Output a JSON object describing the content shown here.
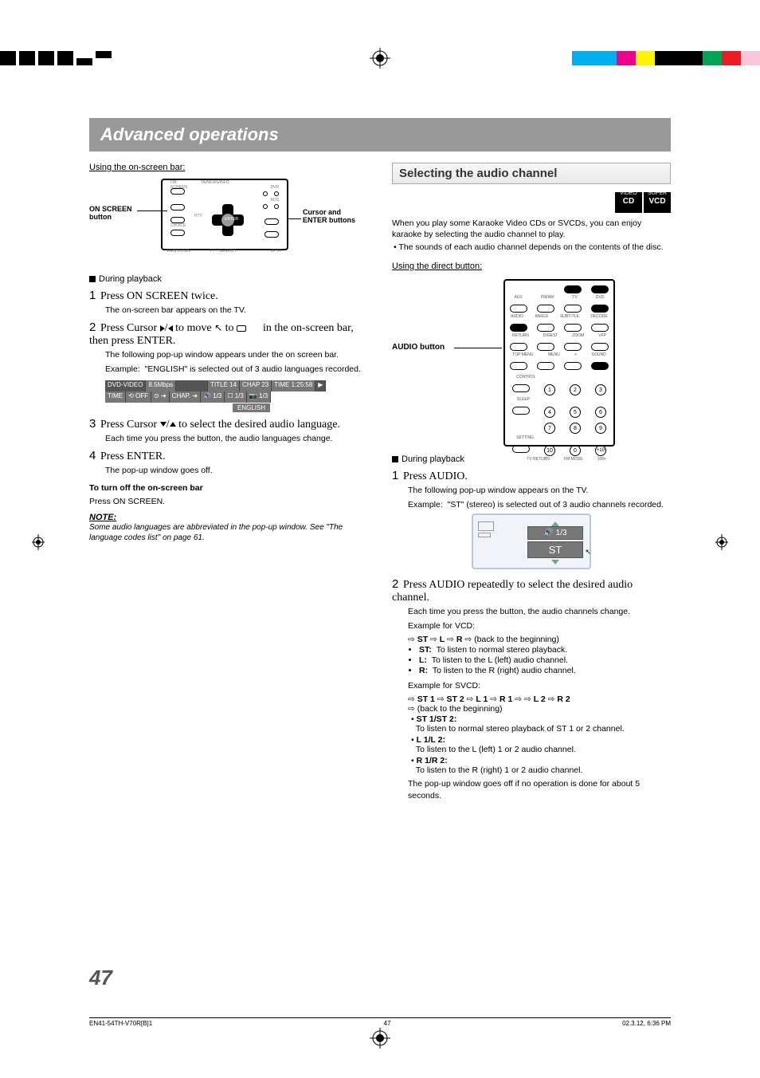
{
  "print_marks": {
    "top_right_colors": [
      "#00aeef",
      "#ec008c",
      "#fff200",
      "#000000",
      "#00a651",
      "#ed1c24",
      "#f7c6d9"
    ]
  },
  "title": "Advanced operations",
  "page_number": "47",
  "footer": {
    "left": "EN41-54TH-V70R[B]1",
    "mid": "47",
    "right": "02.3.12, 6:36 PM"
  },
  "left": {
    "using_bar": "Using the on-screen bar:",
    "on_screen_label": "ON SCREEN button",
    "cursor_label": "Cursor and ENTER buttons",
    "remote_tiny_labels": [
      "CLEAR/REC",
      "TA/NEWS/INFO",
      "ON SCREEN",
      "CHOICE",
      "DVR",
      "RDS",
      "REW",
      "FF",
      "PTY",
      "ENTER",
      "DOWN",
      "UP",
      "PTY SEARCH",
      "+",
      "-"
    ],
    "during": "During playback",
    "s1": "Press ON SCREEN twice.",
    "s1_sub": "The on-screen bar appears on the TV.",
    "s2a": "Press Cursor ",
    "s2b": " to move ",
    "s2c": " to ",
    "s2d": " in the on-screen bar, then press ENTER.",
    "s2_sub1": "The following pop-up window appears under the on screen bar.",
    "s2_sub2a": "Example:",
    "s2_sub2b": "\"ENGLISH\" is selected out of 3 audio languages recorded.",
    "osd": {
      "r1": [
        "DVD-VIDEO",
        "8.5Mbps",
        "",
        "TITLE 14",
        "CHAP 23",
        "TIME 1:25:58",
        "▶"
      ],
      "r2": [
        "TIME",
        "⟲ OFF",
        "⊙ ➜",
        "CHAP. ➜",
        "🔊 1/3",
        "☐ 1/3",
        "📷 1/3"
      ],
      "english": "ENGLISH"
    },
    "s3": "Press Cursor ▼/▲ to select the desired audio language.",
    "s3_sub": "Each time you press the button, the audio languages change.",
    "s4": "Press ENTER.",
    "s4_sub": "The pop-up window goes off.",
    "turnoff_h": "To turn off  the on-screen bar",
    "turnoff_b": "Press ON SCREEN.",
    "note_h": "NOTE:",
    "note_b": "Some audio languages are abbreviated in the pop-up window. See \"The language codes list\" on page 61."
  },
  "right": {
    "section": "Selecting the audio channel",
    "badges": [
      {
        "top": "VIDEO",
        "bot": "CD"
      },
      {
        "top": "SUPER",
        "bot": "VCD"
      }
    ],
    "intro1": "When you play some Karaoke Video CDs or SVCDs, you can enjoy karaoke by selecting the audio channel to play.",
    "intro2": "The sounds of each audio channel depends on the contents of the disc.",
    "using_direct": "Using the direct button:",
    "audio_btn_label": "AUDIO button",
    "remote_labels": [
      "TV",
      "DVD",
      "AUX",
      "FM/AM",
      "AUDIO",
      "ANGLE",
      "SUBTITLE",
      "DECODE",
      "RETURN",
      "DIGEST",
      "ZOOM",
      "VFP",
      "TOP MENU",
      "MENU",
      "CONTROL",
      "SLEEP",
      "SETTING",
      "TV RETURN",
      "FM MODE",
      "100+",
      "SOUND"
    ],
    "numpad": [
      "1",
      "2",
      "3",
      "4",
      "5",
      "6",
      "7",
      "8",
      "9",
      "10",
      "0",
      "+10"
    ],
    "during": "During playback",
    "s1": "Press AUDIO.",
    "s1_sub1": "The following pop-up window appears on the TV.",
    "s1_sub2a": "Example:",
    "s1_sub2b": "\"ST\" (stereo) is selected out of 3 audio channels recorded.",
    "mini": {
      "top": "🔊 1/3",
      "bot": "ST"
    },
    "s2": "Press AUDIO repeatedly to select the desired audio channel.",
    "s2_sub": "Each time you press the button, the audio channels change.",
    "ex_vcd_h": "Example for VCD:",
    "vcd_cycle": [
      "ST",
      "L",
      "R",
      "(back to the beginning)"
    ],
    "vcd_items": [
      {
        "k": "ST:",
        "v": "To listen to normal stereo playback."
      },
      {
        "k": "L:",
        "v": "To listen to the L (left) audio channel."
      },
      {
        "k": "R:",
        "v": "To listen to the R (right) audio channel."
      }
    ],
    "ex_svcd_h": "Example for SVCD:",
    "svcd_cycle1": [
      "ST 1",
      "ST 2",
      "L 1",
      "R 1",
      "",
      "L 2",
      "R 2"
    ],
    "svcd_cycle2": "(back to the beginning)",
    "svcd_items": [
      {
        "k": "ST 1/ST 2:",
        "v": "To listen to normal stereo playback of ST 1 or 2 channel."
      },
      {
        "k": "L 1/L 2:",
        "v": "To listen to the L (left) 1 or 2 audio channel."
      },
      {
        "k": "R 1/R 2:",
        "v": "To listen to the R (right) 1 or 2 audio channel."
      }
    ],
    "closing": "The pop-up window goes off if no operation is done for about 5 seconds."
  }
}
